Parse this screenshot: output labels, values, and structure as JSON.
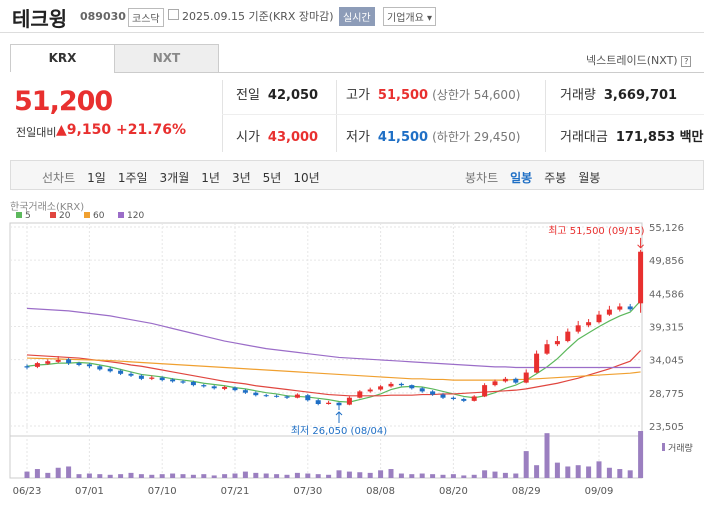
{
  "header": {
    "name": "테크윙",
    "code": "089030",
    "market": "코스닥",
    "date": "2025.09.15 기준(KRX 장마감)",
    "realtime": "실시간",
    "info": "기업개요"
  },
  "tabs": [
    "KRX",
    "NXT"
  ],
  "nxt_link": "넥스트레이드(NXT)",
  "quote": {
    "price": "51,200",
    "change_label": "전일대비",
    "change": "9,150",
    "change_pct": "+21.76%"
  },
  "stats": [
    [
      {
        "label": "전일",
        "value": "42,050"
      },
      {
        "label": "고가",
        "value": "51,500",
        "note": "(상한가 54,600)",
        "color": "#e8302f"
      },
      {
        "label": "거래량",
        "value": "3,669,701"
      }
    ],
    [
      {
        "label": "시가",
        "value": "43,000",
        "color": "#e8302f"
      },
      {
        "label": "저가",
        "value": "41,500",
        "note": "(하한가 29,450)",
        "color": "#1f6fc5"
      },
      {
        "label": "거래대금",
        "value": "171,853 백만"
      }
    ]
  ],
  "periods": {
    "line_label": "선차트",
    "line_items": [
      "1일",
      "1주일",
      "3개월",
      "1년",
      "3년",
      "5년",
      "10년"
    ],
    "candle_label": "봉차트",
    "candle_items": [
      "일봉",
      "주봉",
      "월봉"
    ]
  },
  "chart_data": {
    "type": "candlestick",
    "source": "한국거래소(KRX)",
    "categories": [
      "06/23",
      null,
      null,
      null,
      null,
      null,
      "07/01",
      null,
      null,
      null,
      null,
      null,
      null,
      "07/10",
      null,
      null,
      null,
      null,
      null,
      null,
      "07/21",
      null,
      null,
      null,
      null,
      null,
      null,
      "07/30",
      null,
      null,
      null,
      null,
      null,
      null,
      "08/08",
      null,
      null,
      null,
      null,
      null,
      null,
      "08/20",
      null,
      null,
      null,
      null,
      null,
      null,
      "08/29",
      null,
      null,
      null,
      null,
      null,
      null,
      "09/09",
      null,
      null,
      null,
      null
    ],
    "ohlc": [
      [
        33000,
        33300,
        32500,
        32800
      ],
      [
        32900,
        33700,
        32700,
        33500
      ],
      [
        33400,
        34100,
        33200,
        33800
      ],
      [
        33700,
        34600,
        33500,
        34000
      ],
      [
        34100,
        34300,
        33200,
        33500
      ],
      [
        33500,
        33700,
        33000,
        33200
      ],
      [
        33300,
        33500,
        32700,
        33000
      ],
      [
        33000,
        33200,
        32300,
        32500
      ],
      [
        32600,
        32900,
        32000,
        32200
      ],
      [
        32300,
        32500,
        31600,
        31800
      ],
      [
        31800,
        32100,
        31300,
        31500
      ],
      [
        31500,
        31700,
        30800,
        31000
      ],
      [
        31000,
        31500,
        30800,
        31200
      ],
      [
        31200,
        31400,
        30600,
        30800
      ],
      [
        30900,
        31100,
        30400,
        30600
      ],
      [
        30600,
        30800,
        30200,
        30400
      ],
      [
        30500,
        30700,
        29800,
        30000
      ],
      [
        30000,
        30200,
        29600,
        29800
      ],
      [
        29800,
        30000,
        29300,
        29500
      ],
      [
        29400,
        29900,
        29200,
        29700
      ],
      [
        29600,
        29800,
        29000,
        29200
      ],
      [
        29200,
        29400,
        28600,
        28800
      ],
      [
        28800,
        29000,
        28200,
        28400
      ],
      [
        28400,
        28600,
        28100,
        28300
      ],
      [
        28300,
        28500,
        28000,
        28200
      ],
      [
        28200,
        28400,
        27800,
        28000
      ],
      [
        28000,
        28700,
        27900,
        28500
      ],
      [
        28400,
        28600,
        27400,
        27600
      ],
      [
        27600,
        27800,
        26800,
        27000
      ],
      [
        27000,
        27500,
        26900,
        27200
      ],
      [
        27200,
        27300,
        26050,
        26800
      ],
      [
        26900,
        28200,
        26800,
        28000
      ],
      [
        28000,
        29200,
        27900,
        29000
      ],
      [
        29000,
        29600,
        28800,
        29300
      ],
      [
        29300,
        30000,
        29100,
        29800
      ],
      [
        29800,
        30500,
        29600,
        30200
      ],
      [
        30200,
        30400,
        29800,
        30000
      ],
      [
        30000,
        30100,
        29300,
        29500
      ],
      [
        29500,
        29700,
        28800,
        29000
      ],
      [
        29000,
        29200,
        28300,
        28500
      ],
      [
        28500,
        28700,
        27800,
        28000
      ],
      [
        28000,
        28200,
        27600,
        27800
      ],
      [
        27800,
        28000,
        27300,
        27500
      ],
      [
        27500,
        28400,
        27400,
        28200
      ],
      [
        28200,
        30300,
        28100,
        30000
      ],
      [
        30000,
        30900,
        29800,
        30600
      ],
      [
        30600,
        31300,
        30400,
        31000
      ],
      [
        31000,
        31200,
        30200,
        30400
      ],
      [
        30400,
        32500,
        30300,
        32000
      ],
      [
        32000,
        35500,
        31900,
        35000
      ],
      [
        35000,
        37200,
        34800,
        36500
      ],
      [
        36500,
        37800,
        36200,
        37000
      ],
      [
        37000,
        39000,
        36800,
        38500
      ],
      [
        38500,
        40200,
        38200,
        39500
      ],
      [
        39500,
        40500,
        39200,
        40000
      ],
      [
        40000,
        41800,
        39800,
        41200
      ],
      [
        41200,
        42600,
        41000,
        42000
      ],
      [
        42000,
        43000,
        41700,
        42500
      ],
      [
        42500,
        42900,
        41800,
        42050
      ],
      [
        43000,
        51500,
        41500,
        51200
      ]
    ],
    "ma": [
      {
        "name": "5",
        "color": "#5cb85c",
        "values": [
          33000,
          33200,
          33300,
          33500,
          33500,
          33600,
          33500,
          33200,
          32900,
          32500,
          32100,
          31700,
          31500,
          31300,
          31000,
          30800,
          30600,
          30300,
          30100,
          29900,
          29600,
          29400,
          29100,
          28800,
          28600,
          28300,
          28200,
          28100,
          27900,
          27700,
          27400,
          27300,
          27700,
          28100,
          28600,
          29300,
          29700,
          29800,
          29700,
          29400,
          29000,
          28600,
          28200,
          28000,
          28300,
          28800,
          29500,
          30000,
          30800,
          31800,
          32900,
          34200,
          35800,
          37300,
          38300,
          39300,
          40200,
          41000,
          41600,
          43400
        ]
      },
      {
        "name": "20",
        "color": "#e0463f",
        "values": [
          34800,
          34700,
          34600,
          34500,
          34400,
          34300,
          34100,
          33900,
          33700,
          33500,
          33200,
          33000,
          32700,
          32400,
          32100,
          31800,
          31500,
          31200,
          30900,
          30600,
          30400,
          30200,
          29900,
          29700,
          29500,
          29300,
          29100,
          28900,
          28700,
          28500,
          28400,
          28300,
          28300,
          28300,
          28300,
          28400,
          28400,
          28400,
          28500,
          28500,
          28600,
          28600,
          28700,
          28800,
          28900,
          29000,
          29100,
          29200,
          29400,
          29700,
          30000,
          30300,
          30700,
          31100,
          31600,
          32100,
          32600,
          33200,
          33800,
          35500
        ]
      },
      {
        "name": "60",
        "color": "#f0a030",
        "values": [
          34300,
          34250,
          34200,
          34150,
          34100,
          34050,
          34000,
          33950,
          33900,
          33800,
          33700,
          33600,
          33500,
          33400,
          33300,
          33200,
          33100,
          33000,
          32900,
          32800,
          32700,
          32600,
          32500,
          32400,
          32300,
          32200,
          32100,
          32000,
          31900,
          31800,
          31700,
          31600,
          31500,
          31400,
          31300,
          31200,
          31100,
          31000,
          31000,
          30900,
          30900,
          30800,
          30800,
          30800,
          30800,
          30800,
          30800,
          30900,
          30900,
          31000,
          31100,
          31200,
          31300,
          31400,
          31500,
          31600,
          31700,
          31800,
          31900,
          32100
        ]
      },
      {
        "name": "120",
        "color": "#9b6dc8",
        "values": [
          42200,
          42100,
          42000,
          41900,
          41800,
          41600,
          41400,
          41200,
          41000,
          40700,
          40400,
          40100,
          39800,
          39400,
          39000,
          38600,
          38200,
          37800,
          37400,
          37000,
          36700,
          36400,
          36100,
          35800,
          35600,
          35400,
          35200,
          35000,
          34800,
          34600,
          34400,
          34300,
          34200,
          34100,
          34000,
          33900,
          33800,
          33700,
          33600,
          33500,
          33400,
          33300,
          33200,
          33100,
          33000,
          32900,
          32900,
          32800,
          32800,
          32800,
          32800,
          32800,
          32800,
          32800,
          32800,
          32800,
          32800,
          32800,
          32800,
          32800
        ]
      }
    ],
    "volume": {
      "name": "거래량",
      "color": "#9b7fc0",
      "values": [
        500000,
        700000,
        400000,
        800000,
        900000,
        300000,
        350000,
        300000,
        250000,
        300000,
        400000,
        300000,
        250000,
        300000,
        350000,
        300000,
        250000,
        300000,
        200000,
        300000,
        350000,
        500000,
        400000,
        350000,
        300000,
        250000,
        400000,
        350000,
        300000,
        250000,
        600000,
        500000,
        450000,
        400000,
        600000,
        700000,
        350000,
        300000,
        350000,
        300000,
        250000,
        300000,
        200000,
        250000,
        600000,
        500000,
        400000,
        350000,
        2100000,
        1000000,
        3500000,
        1200000,
        900000,
        1000000,
        900000,
        1300000,
        800000,
        700000,
        600000,
        3669701
      ]
    },
    "up_color": "#e8302f",
    "down_color": "#1f6fc5",
    "ylim": [
      23505,
      55126
    ],
    "yticks": [
      {
        "value": 23505,
        "label": "23,505"
      },
      {
        "value": 28775,
        "label": "28,775"
      },
      {
        "value": 34045,
        "label": "34,045"
      },
      {
        "value": 39315,
        "label": "39,315"
      },
      {
        "value": 44586,
        "label": "44,586"
      },
      {
        "value": 49856,
        "label": "49,856"
      },
      {
        "value": 55126,
        "label": "55,126"
      }
    ],
    "annotations": {
      "high": "최고 51,500 (09/15)",
      "low": "최저 26,050 (08/04)"
    }
  }
}
